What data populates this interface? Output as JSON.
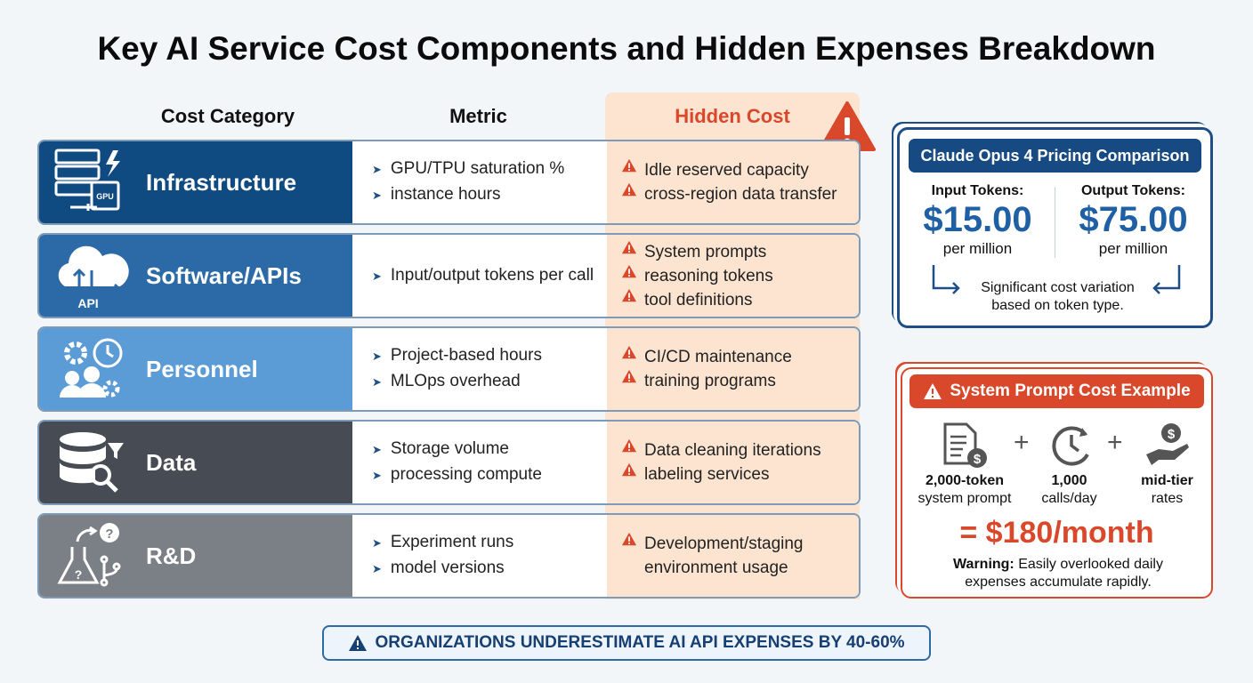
{
  "title": "Key AI Service Cost Components and Hidden Expenses Breakdown",
  "headers": {
    "category": "Cost Category",
    "metric": "Metric",
    "hidden": "Hidden Cost"
  },
  "rows": [
    {
      "category": "Infrastructure",
      "icon": "server-gpu-icon",
      "color": "#0f4a80",
      "metrics": [
        "GPU/TPU saturation %",
        "instance hours"
      ],
      "hidden": [
        "Idle reserved capacity",
        "cross-region data transfer"
      ],
      "icon_text": "GPU"
    },
    {
      "category": "Software/APIs",
      "icon": "cloud-api-icon",
      "color": "#2c6aa7",
      "metrics": [
        "Input/output tokens per call"
      ],
      "hidden": [
        "System prompts",
        "reasoning tokens",
        "tool definitions"
      ],
      "icon_text": "API"
    },
    {
      "category": "Personnel",
      "icon": "people-gear-clock-icon",
      "color": "#5b9bd6",
      "metrics": [
        "Project-based hours",
        "MLOps overhead"
      ],
      "hidden": [
        "CI/CD maintenance",
        "training programs"
      ]
    },
    {
      "category": "Data",
      "icon": "database-search-icon",
      "color": "#474c54",
      "metrics": [
        "Storage volume",
        "processing compute"
      ],
      "hidden": [
        "Data cleaning iterations",
        "labeling services"
      ]
    },
    {
      "category": "R&D",
      "icon": "flask-question-icon",
      "color": "#7b7f86",
      "metrics": [
        "Experiment runs",
        "model versions"
      ],
      "hidden": [
        "Development/staging environment usage"
      ]
    }
  ],
  "pricing": {
    "title": "Claude Opus 4 Pricing Comparison",
    "input_label": "Input Tokens:",
    "input_price": "$15.00",
    "input_unit": "per million",
    "output_label": "Output Tokens:",
    "output_price": "$75.00",
    "output_unit": "per million",
    "note": "Significant cost variation based on token type."
  },
  "example": {
    "title": "System Prompt Cost Example",
    "items": [
      {
        "bold": "2,000-token",
        "text": "system prompt"
      },
      {
        "bold": "1,000",
        "text": "calls/day"
      },
      {
        "bold": "mid-tier",
        "text": "rates"
      }
    ],
    "plus": "+",
    "result": "= $180/month",
    "warning_label": "Warning:",
    "warning_text": "Easily overlooked daily expenses accumulate rapidly."
  },
  "footer": "ORGANIZATIONS UNDERESTIMATE AI API EXPENSES BY 40-60%",
  "colors": {
    "navy": "#0f4a80",
    "orange": "#d9482a",
    "peach": "#fde4d0"
  }
}
